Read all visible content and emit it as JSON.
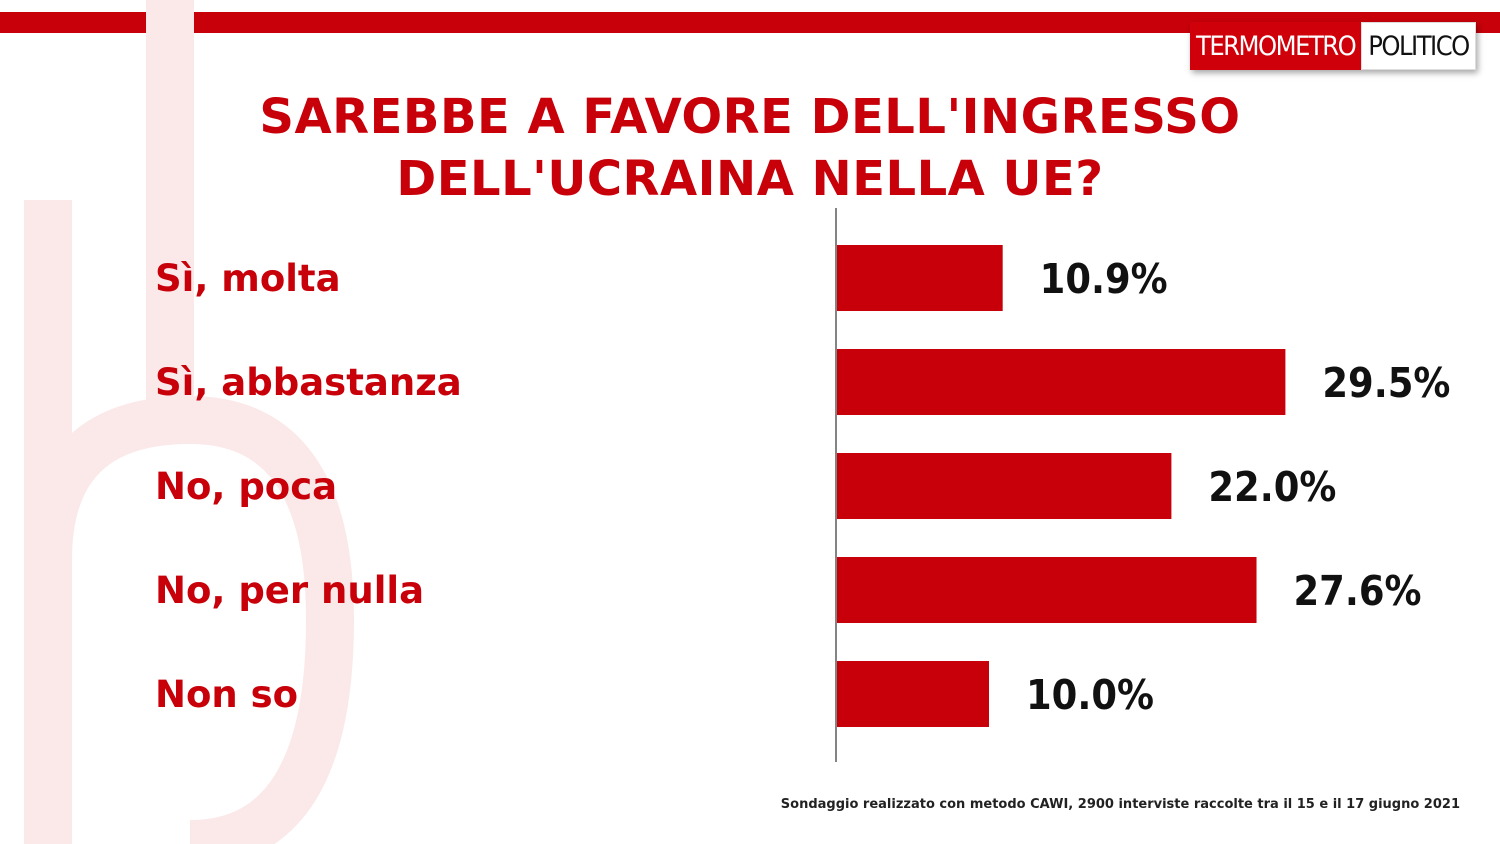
{
  "brand": {
    "logo_left": "TERMOMETRO",
    "logo_right": "POLITICO",
    "accent": "#c8000a"
  },
  "header": {
    "title_line1": "SAREBBE A FAVORE DELL'INGRESSO",
    "title_line2": "DELL'UCRAINA NELLA UE?"
  },
  "chart_data": {
    "type": "bar",
    "orientation": "horizontal",
    "title": "SAREBBE A FAVORE DELL'INGRESSO DELL'UCRAINA NELLA UE?",
    "categories": [
      "Sì, molta",
      "Sì, abbastanza",
      "No, poca",
      "No, per nulla",
      "Non so"
    ],
    "values": [
      10.9,
      29.5,
      22.0,
      27.6,
      10.0
    ],
    "value_labels": [
      "10.9%",
      "29.5%",
      "22.0%",
      "27.6%",
      "10.0%"
    ],
    "unit": "%",
    "bar_color": "#c8000a",
    "xlim": [
      0,
      30
    ],
    "grid": false,
    "legend": "none"
  },
  "footer": {
    "note": "Sondaggio realizzato con metodo CAWI, 2900 interviste raccolte tra il 15  e il 17 giugno 2021"
  }
}
